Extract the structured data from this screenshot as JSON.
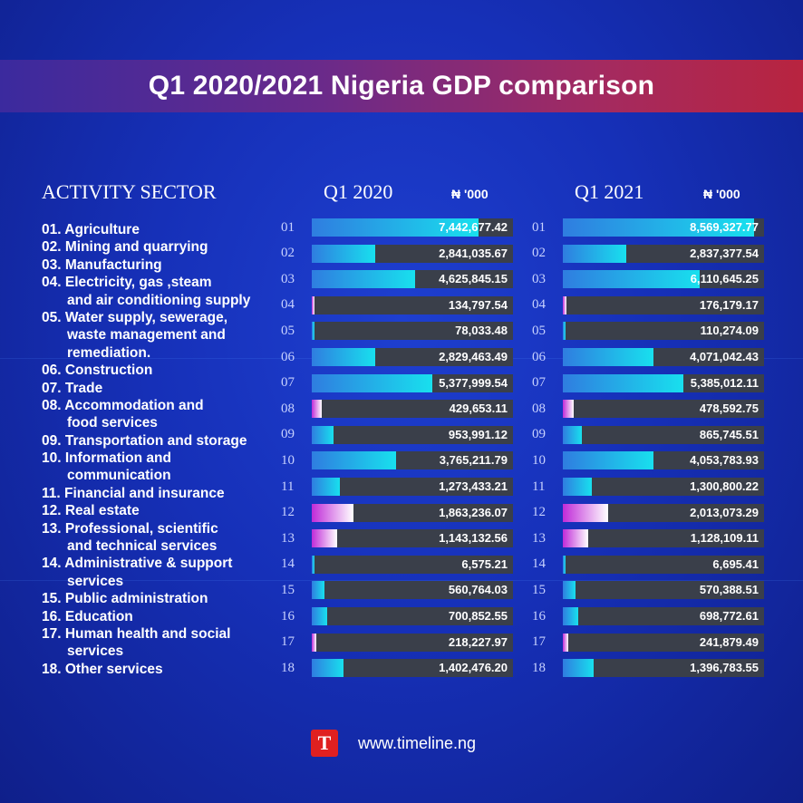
{
  "title": "Q1 2020/2021 Nigeria GDP comparison",
  "sector_header": "ACTIVITY SECTOR",
  "col1_header": "Q1 2020",
  "col2_header": "Q1 2021",
  "unit": "₦  '000",
  "sector_lines": [
    {
      "text": "01. Agriculture",
      "cont": false
    },
    {
      "text": "02. Mining and quarrying",
      "cont": false
    },
    {
      "text": "03. Manufacturing",
      "cont": false
    },
    {
      "text": "04. Electricity, gas ,steam",
      "cont": false
    },
    {
      "text": "and air conditioning supply",
      "cont": true
    },
    {
      "text": "05. Water supply, sewerage,",
      "cont": false
    },
    {
      "text": "waste management and",
      "cont": true
    },
    {
      "text": "remediation.",
      "cont": true
    },
    {
      "text": "06. Construction",
      "cont": false
    },
    {
      "text": "07. Trade",
      "cont": false
    },
    {
      "text": "08. Accommodation and",
      "cont": false
    },
    {
      "text": "food services",
      "cont": true
    },
    {
      "text": "09. Transportation and storage",
      "cont": false
    },
    {
      "text": "10. Information and",
      "cont": false
    },
    {
      "text": "communication",
      "cont": true
    },
    {
      "text": "11. Financial and insurance",
      "cont": false
    },
    {
      "text": "12. Real estate",
      "cont": false
    },
    {
      "text": "13. Professional, scientific",
      "cont": false
    },
    {
      "text": "and technical services",
      "cont": true
    },
    {
      "text": "14. Administrative & support",
      "cont": false
    },
    {
      "text": "services",
      "cont": true
    },
    {
      "text": "15. Public administration",
      "cont": false
    },
    {
      "text": "16. Education",
      "cont": false
    },
    {
      "text": "17. Human health and social",
      "cont": false
    },
    {
      "text": "services",
      "cont": true
    },
    {
      "text": "18. Other services",
      "cont": false
    }
  ],
  "chart_data": {
    "type": "bar",
    "orientation": "horizontal",
    "categories": [
      "01",
      "02",
      "03",
      "04",
      "05",
      "06",
      "07",
      "08",
      "09",
      "10",
      "11",
      "12",
      "13",
      "14",
      "15",
      "16",
      "17",
      "18"
    ],
    "series": [
      {
        "name": "Q1 2020",
        "values": [
          7442677.42,
          2841035.67,
          4625845.15,
          134797.54,
          78033.48,
          2829463.49,
          5377999.54,
          429653.11,
          953991.12,
          3765211.79,
          1273433.21,
          1863236.07,
          1143132.56,
          6575.21,
          560764.03,
          700852.55,
          218227.97,
          1402476.2
        ],
        "labels": [
          "7,442,677.42",
          "2,841,035.67",
          "4,625,845.15",
          "134,797.54",
          "78,033.48",
          "2,829,463.49",
          "5,377,999.54",
          "429,653.11",
          "953,991.12",
          "3,765,211.79",
          "1,273,433.21",
          "1,863,236.07",
          "1,143,132.56",
          "6,575.21",
          "560,764.03",
          "700,852.55",
          "218,227.97",
          "1,402,476.20"
        ]
      },
      {
        "name": "Q1 2021",
        "values": [
          8569327.77,
          2837377.54,
          6110645.25,
          176179.17,
          110274.09,
          4071042.43,
          5385012.11,
          478592.75,
          865745.51,
          4053783.93,
          1300800.22,
          2013073.29,
          1128109.11,
          6695.41,
          570388.51,
          698772.61,
          241879.49,
          1396783.55
        ],
        "labels": [
          "8,569,327.77",
          "2,837,377.54",
          "6,110,645.25",
          "176,179.17",
          "110,274.09",
          "4,071,042.43",
          "5,385,012.11",
          "478,592.75",
          "865,745.51",
          "4,053,783.93",
          "1,300,800.22",
          "2,013,073.29",
          "1,128,109.11",
          "6,695.41",
          "570,388.51",
          "698,772.61",
          "241,879.49",
          "1,396,783.55"
        ]
      }
    ],
    "fill_style": [
      "cyan",
      "cyan",
      "cyan",
      "pink",
      "cyan",
      "cyan",
      "cyan",
      "pink",
      "cyan",
      "cyan",
      "cyan",
      "pink",
      "pink",
      "cyan",
      "cyan",
      "cyan",
      "pink",
      "cyan"
    ],
    "colors": {
      "cyan_start": "#2f7de0",
      "cyan_end": "#18e0ee",
      "pink_start": "#c02ad8",
      "pink_end": "#ffffff",
      "track": "#3a3f4a"
    }
  },
  "footer": {
    "logo_letter": "T",
    "url": "www.timeline.ng"
  }
}
